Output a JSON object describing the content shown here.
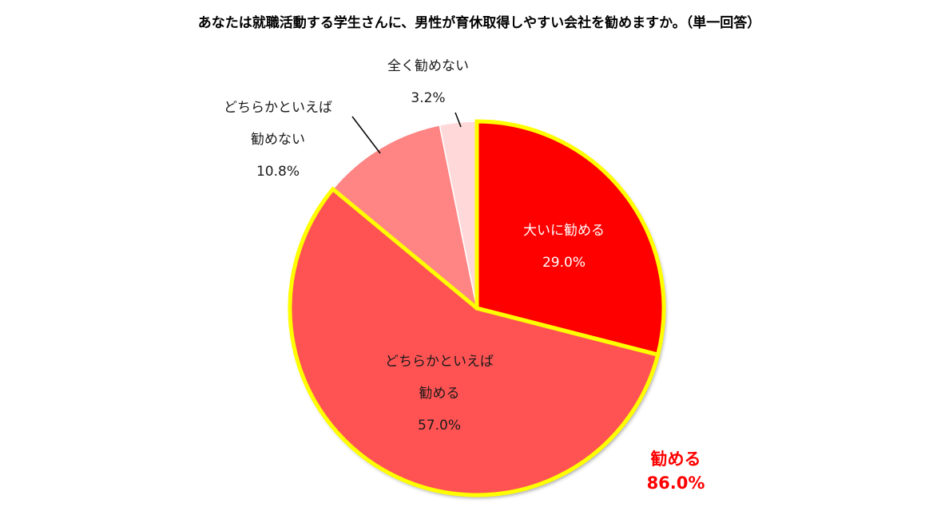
{
  "chart_data": {
    "type": "pie",
    "title": "あなたは就職活動する学生さんに、男性が育休取得しやすい会社を勧めますか。（単一回答）",
    "slices": [
      {
        "label_lines": [
          "大いに勧める"
        ],
        "value": 29.0,
        "value_label": "29.0%",
        "color": "#ff0000",
        "text_color": "#ffffff",
        "highlight": true
      },
      {
        "label_lines": [
          "どちらかといえば",
          "勧める"
        ],
        "value": 57.0,
        "value_label": "57.0%",
        "color": "#ff5252",
        "text_color": "#1a1a1a",
        "highlight": true
      },
      {
        "label_lines": [
          "どちらかといえば",
          "勧めない"
        ],
        "value": 10.8,
        "value_label": "10.8%",
        "color": "#ff8585",
        "text_color": "#1a1a1a",
        "highlight": false
      },
      {
        "label_lines": [
          "全く勧めない"
        ],
        "value": 3.2,
        "value_label": "3.2%",
        "color": "#ffd9d9",
        "text_color": "#1a1a1a",
        "highlight": false
      }
    ],
    "highlight_group": {
      "label": "勧める",
      "value_label": "86.0%",
      "color": "#ff0000",
      "outline_color": "#ffff00"
    },
    "legend": "none",
    "start_angle": "12 o'clock, clockwise"
  }
}
